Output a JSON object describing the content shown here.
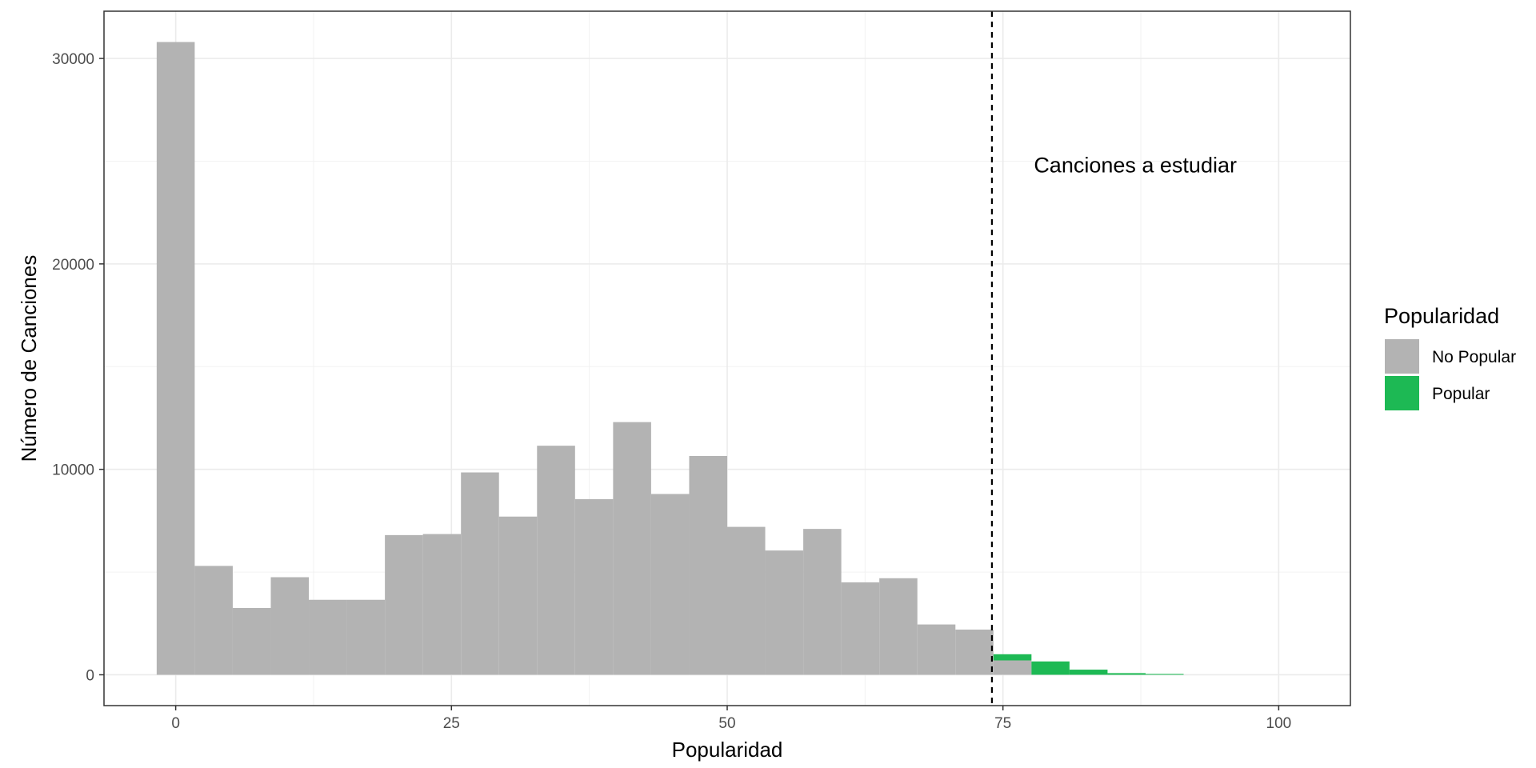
{
  "chart_data": {
    "type": "bar",
    "title": "",
    "xlabel": "Popularidad",
    "ylabel": "Número de Canciones",
    "xlim": [
      -6.5,
      106.5
    ],
    "ylim": [
      -1500,
      32300
    ],
    "x_ticks": [
      0,
      25,
      50,
      75,
      100
    ],
    "y_ticks": [
      0,
      10000,
      20000,
      30000
    ],
    "grid": true,
    "legend": {
      "title": "Popularidad",
      "position": "right"
    },
    "bin_width": 3.448,
    "series": [
      {
        "name": "No Popular",
        "color": "#b3b3b3",
        "bins": [
          {
            "x0": -1.724,
            "x1": 1.724,
            "count": 30800
          },
          {
            "x0": 1.724,
            "x1": 5.172,
            "count": 5300
          },
          {
            "x0": 5.172,
            "x1": 8.621,
            "count": 3250
          },
          {
            "x0": 8.621,
            "x1": 12.069,
            "count": 4750
          },
          {
            "x0": 12.069,
            "x1": 15.517,
            "count": 3650
          },
          {
            "x0": 15.517,
            "x1": 18.966,
            "count": 3650
          },
          {
            "x0": 18.966,
            "x1": 22.414,
            "count": 6800
          },
          {
            "x0": 22.414,
            "x1": 25.862,
            "count": 6850
          },
          {
            "x0": 25.862,
            "x1": 29.31,
            "count": 9850
          },
          {
            "x0": 29.31,
            "x1": 32.759,
            "count": 7700
          },
          {
            "x0": 32.759,
            "x1": 36.207,
            "count": 11150
          },
          {
            "x0": 36.207,
            "x1": 39.655,
            "count": 8550
          },
          {
            "x0": 39.655,
            "x1": 43.103,
            "count": 12300
          },
          {
            "x0": 43.103,
            "x1": 46.552,
            "count": 8800
          },
          {
            "x0": 46.552,
            "x1": 50.0,
            "count": 10650
          },
          {
            "x0": 50.0,
            "x1": 53.448,
            "count": 7200
          },
          {
            "x0": 53.448,
            "x1": 56.897,
            "count": 6050
          },
          {
            "x0": 56.897,
            "x1": 60.345,
            "count": 7100
          },
          {
            "x0": 60.345,
            "x1": 63.793,
            "count": 4500
          },
          {
            "x0": 63.793,
            "x1": 67.241,
            "count": 4700
          },
          {
            "x0": 67.241,
            "x1": 70.69,
            "count": 2450
          },
          {
            "x0": 70.69,
            "x1": 74.138,
            "count": 2200
          },
          {
            "x0": 74.138,
            "x1": 77.586,
            "count": 700
          }
        ]
      },
      {
        "name": "Popular",
        "color": "#1db954",
        "bins": [
          {
            "x0": 74.138,
            "x1": 77.586,
            "count": 300
          },
          {
            "x0": 77.586,
            "x1": 81.034,
            "count": 650
          },
          {
            "x0": 81.034,
            "x1": 84.483,
            "count": 250
          },
          {
            "x0": 84.483,
            "x1": 87.931,
            "count": 80
          },
          {
            "x0": 87.931,
            "x1": 91.379,
            "count": 40
          }
        ]
      }
    ],
    "reference_line": {
      "x": 74,
      "style": "dashed",
      "color": "#000000"
    },
    "annotations": [
      {
        "text": "Canciones a estudiar",
        "x": 87,
        "y": 24800
      }
    ]
  }
}
